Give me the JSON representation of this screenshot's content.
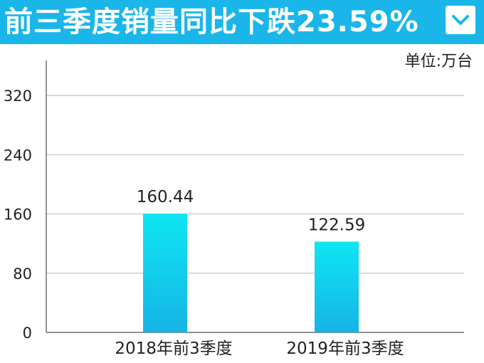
{
  "header": {
    "title": "前三季度销量同比下跌23.59%",
    "menu_icon": "chevron-down-icon",
    "background": "#1ab6ea"
  },
  "chart_data": {
    "type": "bar",
    "unit_label": "单位:万台",
    "categories": [
      "2018年前3季度",
      "2019年前3季度"
    ],
    "values": [
      160.44,
      122.59
    ],
    "value_labels": [
      "160.44",
      "122.59"
    ],
    "ylim": [
      0,
      360
    ],
    "yticks": [
      0,
      80,
      160,
      240,
      320
    ],
    "grid": true,
    "bar_colors": [
      "#0ee6f2",
      "#16b4e6"
    ]
  }
}
